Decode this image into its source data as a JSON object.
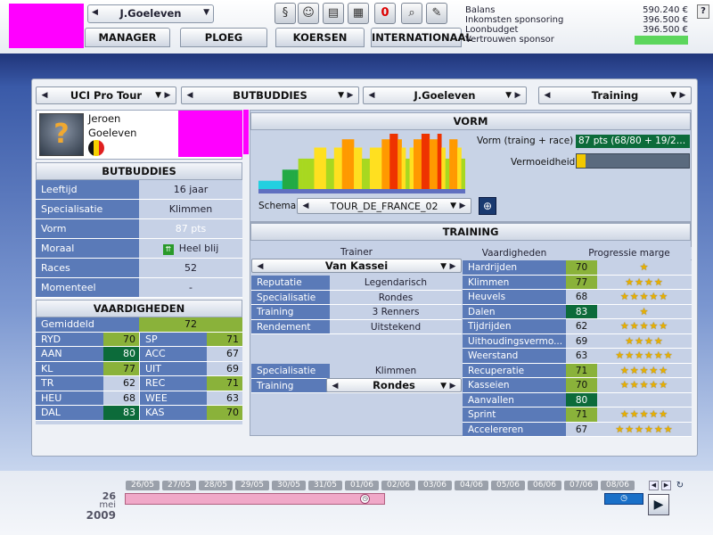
{
  "header": {
    "manager_select": "J.Goeleven",
    "tabs": [
      "MANAGER",
      "PLOEG",
      "KOERSEN",
      "INTERNATIONAAL"
    ],
    "toolbar_icons": [
      "document-icon",
      "cyclist-icon",
      "money-icon",
      "newspaper-icon",
      "mail-icon",
      "magnifier-icon",
      "notepad-icon"
    ],
    "mail_count": "0",
    "help": "?"
  },
  "finance": {
    "rows": [
      {
        "label": "Balans",
        "value": "590.240 €"
      },
      {
        "label": "Inkomsten sponsoring",
        "value": "396.500 €"
      },
      {
        "label": "Loonbudget",
        "value": "396.500 €"
      },
      {
        "label": "Vertrouwen sponsor",
        "value": ""
      }
    ],
    "sponsor_trust_color": "#5cd65c"
  },
  "selectors": {
    "league": "UCI Pro Tour",
    "team": "BUTBUDDIES",
    "rider": "J.Goeleven",
    "view": "Training"
  },
  "rider": {
    "first_name": "Jeroen",
    "last_name": "Goeleven",
    "flag_colors": [
      "#111111",
      "#f5d000",
      "#e02020"
    ],
    "team_header": "BUTBUDDIES",
    "stats": [
      {
        "label": "Leeftijd",
        "value": "16 jaar"
      },
      {
        "label": "Specialisatie",
        "value": "Klimmen"
      },
      {
        "label": "Vorm",
        "value": "87 pts"
      },
      {
        "label": "Moraal",
        "value": "Heel blij"
      },
      {
        "label": "Races",
        "value": "52"
      },
      {
        "label": "Momenteel",
        "value": "-"
      }
    ],
    "skills_header": "VAARDIGHEDEN",
    "average_label": "Gemiddeld",
    "average_value": "72",
    "skills": [
      {
        "k1": "RYD",
        "v1": "70",
        "c1": "g1",
        "k2": "SP",
        "v2": "71",
        "c2": "g1"
      },
      {
        "k1": "AAN",
        "v1": "80",
        "c1": "g2",
        "k2": "ACC",
        "v2": "67",
        "c2": "g0"
      },
      {
        "k1": "KL",
        "v1": "77",
        "c1": "g1",
        "k2": "UIT",
        "v2": "69",
        "c2": "g0"
      },
      {
        "k1": "TR",
        "v1": "62",
        "c1": "g0",
        "k2": "REC",
        "v2": "71",
        "c2": "g1"
      },
      {
        "k1": "HEU",
        "v1": "68",
        "c1": "g0",
        "k2": "WEE",
        "v2": "63",
        "c2": "g0"
      },
      {
        "k1": "DAL",
        "v1": "83",
        "c1": "g2",
        "k2": "KAS",
        "v2": "70",
        "c2": "g1"
      }
    ]
  },
  "form": {
    "header": "VORM",
    "form_label": "Vorm (traing + race)",
    "form_value": "87 pts (68/80 + 19/2…",
    "fatigue_label": "Vermoeidheid",
    "fatigue_level": 0.08,
    "schema_label": "Schema",
    "schema_value": "TOUR_DE_FRANCE_02",
    "chart_bars": [
      {
        "h": 0.15,
        "c": "#22d0e0"
      },
      {
        "h": 0.15,
        "c": "#22d0e0"
      },
      {
        "h": 0.15,
        "c": "#22d0e0"
      },
      {
        "h": 0.15,
        "c": "#22d0e0"
      },
      {
        "h": 0.15,
        "c": "#22d0e0"
      },
      {
        "h": 0.15,
        "c": "#22d0e0"
      },
      {
        "h": 0.35,
        "c": "#22aa44"
      },
      {
        "h": 0.35,
        "c": "#22aa44"
      },
      {
        "h": 0.35,
        "c": "#22aa44"
      },
      {
        "h": 0.35,
        "c": "#22aa44"
      },
      {
        "h": 0.55,
        "c": "#a8d820"
      },
      {
        "h": 0.55,
        "c": "#a8d820"
      },
      {
        "h": 0.55,
        "c": "#a8d820"
      },
      {
        "h": 0.55,
        "c": "#a8d820"
      },
      {
        "h": 0.75,
        "c": "#ffe020"
      },
      {
        "h": 0.75,
        "c": "#ffe020"
      },
      {
        "h": 0.75,
        "c": "#ffe020"
      },
      {
        "h": 0.55,
        "c": "#a8d820"
      },
      {
        "h": 0.55,
        "c": "#a8d820"
      },
      {
        "h": 0.75,
        "c": "#ffe020"
      },
      {
        "h": 0.75,
        "c": "#ffe020"
      },
      {
        "h": 0.9,
        "c": "#ff9900"
      },
      {
        "h": 0.9,
        "c": "#ff9900"
      },
      {
        "h": 0.9,
        "c": "#ff9900"
      },
      {
        "h": 0.75,
        "c": "#ffe020"
      },
      {
        "h": 0.75,
        "c": "#ffe020"
      },
      {
        "h": 0.55,
        "c": "#a8d820"
      },
      {
        "h": 0.55,
        "c": "#a8d820"
      },
      {
        "h": 0.75,
        "c": "#ffe020"
      },
      {
        "h": 0.75,
        "c": "#ffe020"
      },
      {
        "h": 0.75,
        "c": "#ffe020"
      },
      {
        "h": 0.9,
        "c": "#ff9900"
      },
      {
        "h": 0.9,
        "c": "#ff9900"
      },
      {
        "h": 1.0,
        "c": "#ee3300"
      },
      {
        "h": 1.0,
        "c": "#ee3300"
      },
      {
        "h": 0.9,
        "c": "#ff9900"
      },
      {
        "h": 0.75,
        "c": "#ffe020"
      },
      {
        "h": 0.55,
        "c": "#a8d820"
      },
      {
        "h": 0.75,
        "c": "#ffe020"
      },
      {
        "h": 0.9,
        "c": "#ff9900"
      },
      {
        "h": 0.9,
        "c": "#ff9900"
      },
      {
        "h": 1.0,
        "c": "#ee3300"
      },
      {
        "h": 1.0,
        "c": "#ee3300"
      },
      {
        "h": 0.9,
        "c": "#ff9900"
      },
      {
        "h": 0.9,
        "c": "#ff9900"
      },
      {
        "h": 1.0,
        "c": "#ee3300"
      },
      {
        "h": 0.75,
        "c": "#ffe020"
      },
      {
        "h": 0.55,
        "c": "#a8d820"
      },
      {
        "h": 0.9,
        "c": "#ff9900"
      },
      {
        "h": 0.9,
        "c": "#ff9900"
      },
      {
        "h": 0.75,
        "c": "#ffe020"
      },
      {
        "h": 0.55,
        "c": "#a8d820"
      }
    ]
  },
  "training": {
    "header": "TRAINING",
    "trainer_header": "Trainer",
    "trainer_name": "Van Kassei",
    "trainer_rows": [
      {
        "label": "Reputatie",
        "value": "Legendarisch"
      },
      {
        "label": "Specialisatie",
        "value": "Rondes"
      },
      {
        "label": "Training",
        "value": "3 Renners"
      },
      {
        "label": "Rendement",
        "value": "Uitstekend"
      }
    ],
    "rider_spec_label": "Specialisatie",
    "rider_spec_value": "Klimmen",
    "training_label": "Training",
    "training_value": "Rondes",
    "skills_col": "Vaardigheden",
    "margin_col": "Progressie marge",
    "skills": [
      {
        "label": "Hardrijden",
        "value": "70",
        "c": "g1",
        "stars": "★"
      },
      {
        "label": "Klimmen",
        "value": "77",
        "c": "g1",
        "stars": "★★★★"
      },
      {
        "label": "Heuvels",
        "value": "68",
        "c": "g0",
        "stars": "★★★★★"
      },
      {
        "label": "Dalen",
        "value": "83",
        "c": "g2",
        "stars": "★"
      },
      {
        "label": "Tijdrijden",
        "value": "62",
        "c": "g0",
        "stars": "★★★★★"
      },
      {
        "label": "Uithoudingsvermo...",
        "value": "69",
        "c": "g0",
        "stars": "★★★★"
      },
      {
        "label": "Weerstand",
        "value": "63",
        "c": "g0",
        "stars": "★★★★★★"
      },
      {
        "label": "Recuperatie",
        "value": "71",
        "c": "g1",
        "stars": "★★★★★"
      },
      {
        "label": "Kasseien",
        "value": "70",
        "c": "g1",
        "stars": "★★★★★"
      },
      {
        "label": "Aanvallen",
        "value": "80",
        "c": "g2",
        "stars": ""
      },
      {
        "label": "Sprint",
        "value": "71",
        "c": "g1",
        "stars": "★★★★★"
      },
      {
        "label": "Accelereren",
        "value": "67",
        "c": "g0",
        "stars": "★★★★★★"
      }
    ]
  },
  "timeline": {
    "date_day": "26",
    "date_month": "mei",
    "date_year": "2009",
    "days": [
      "26/05",
      "27/05",
      "28/05",
      "29/05",
      "30/05",
      "31/05",
      "01/06",
      "02/06",
      "03/06",
      "04/06",
      "05/06",
      "06/06",
      "07/06",
      "08/06"
    ]
  }
}
